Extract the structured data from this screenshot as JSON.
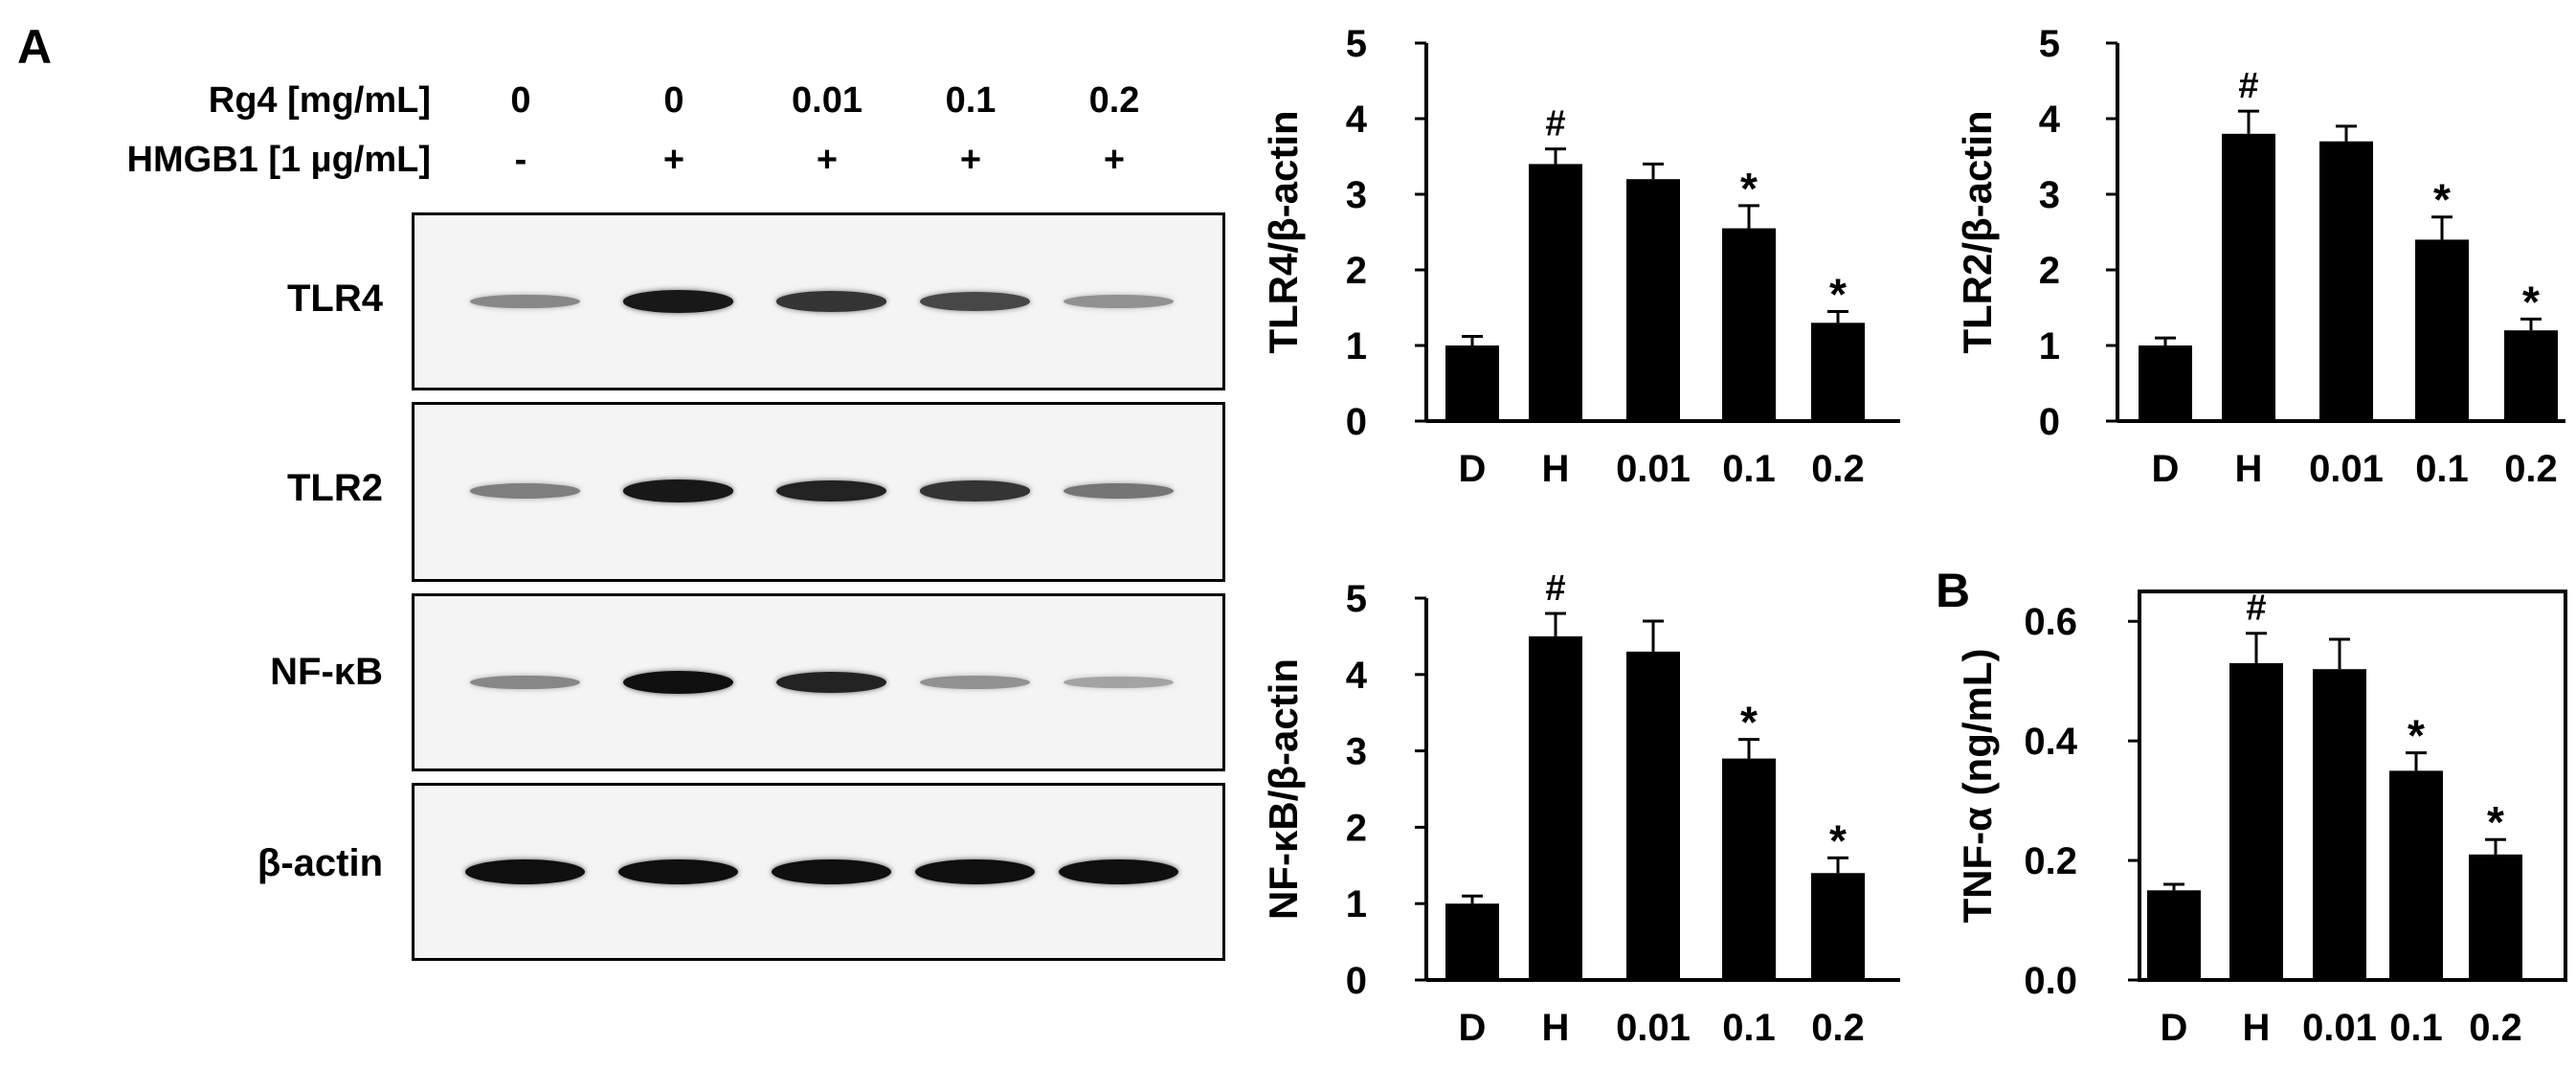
{
  "panel_a_label": "A",
  "panel_b_label": "B",
  "blot": {
    "rows": [
      {
        "label": "Rg4 [mg/mL]",
        "values": [
          "0",
          "0",
          "0.01",
          "0.1",
          "0.2"
        ]
      },
      {
        "label": "HMGB1 [1 µg/mL]",
        "values": [
          "-",
          "+",
          "+",
          "+",
          "+"
        ]
      }
    ],
    "bands": [
      {
        "label": "TLR4",
        "intensity": [
          0.35,
          0.95,
          0.8,
          0.7,
          0.3
        ]
      },
      {
        "label": "TLR2",
        "intensity": [
          0.4,
          0.95,
          0.9,
          0.8,
          0.45
        ]
      },
      {
        "label": "NF-κB",
        "intensity": [
          0.35,
          1.0,
          0.9,
          0.3,
          0.2
        ]
      },
      {
        "label": "β-actin",
        "intensity": [
          1.0,
          1.0,
          1.0,
          1.0,
          1.0
        ]
      }
    ]
  },
  "chart_data": [
    {
      "type": "bar",
      "categories": [
        "D",
        "H",
        "0.01",
        "0.1",
        "0.2"
      ],
      "values": [
        1.0,
        3.4,
        3.2,
        2.55,
        1.3
      ],
      "errors": [
        0.12,
        0.2,
        0.2,
        0.3,
        0.15
      ],
      "annotations": [
        "",
        "#",
        "",
        "*",
        "*"
      ],
      "ylabel": "TLR4/β-actin",
      "ylim": [
        0,
        5
      ],
      "yticks": [
        "0",
        "1",
        "2",
        "3",
        "4",
        "5"
      ],
      "frame": "open"
    },
    {
      "type": "bar",
      "categories": [
        "D",
        "H",
        "0.01",
        "0.1",
        "0.2"
      ],
      "values": [
        1.0,
        3.8,
        3.7,
        2.4,
        1.2
      ],
      "errors": [
        0.1,
        0.3,
        0.2,
        0.3,
        0.15
      ],
      "annotations": [
        "",
        "#",
        "",
        "*",
        "*"
      ],
      "ylabel": "TLR2/β-actin",
      "ylim": [
        0,
        5
      ],
      "yticks": [
        "0",
        "1",
        "2",
        "3",
        "4",
        "5"
      ],
      "frame": "open"
    },
    {
      "type": "bar",
      "categories": [
        "D",
        "H",
        "0.01",
        "0.1",
        "0.2"
      ],
      "values": [
        1.0,
        4.5,
        4.3,
        2.9,
        1.4
      ],
      "errors": [
        0.1,
        0.3,
        0.4,
        0.25,
        0.2
      ],
      "annotations": [
        "",
        "#",
        "",
        "*",
        "*"
      ],
      "ylabel": "NF-κB/β-actin",
      "ylim": [
        0,
        5
      ],
      "yticks": [
        "0",
        "1",
        "2",
        "3",
        "4",
        "5"
      ],
      "frame": "open"
    },
    {
      "type": "bar",
      "categories": [
        "D",
        "H",
        "0.01",
        "0.1",
        "0.2"
      ],
      "values": [
        0.15,
        0.53,
        0.52,
        0.35,
        0.21
      ],
      "errors": [
        0.01,
        0.05,
        0.05,
        0.03,
        0.025
      ],
      "annotations": [
        "",
        "#",
        "",
        "*",
        "*"
      ],
      "ylabel": "TNF-α (ng/mL)",
      "ylim": [
        0,
        0.65
      ],
      "yticks": [
        "0.0",
        "0.2",
        "0.4",
        "0.6"
      ],
      "ytick_values": [
        0,
        0.2,
        0.4,
        0.6
      ],
      "frame": "box"
    }
  ]
}
